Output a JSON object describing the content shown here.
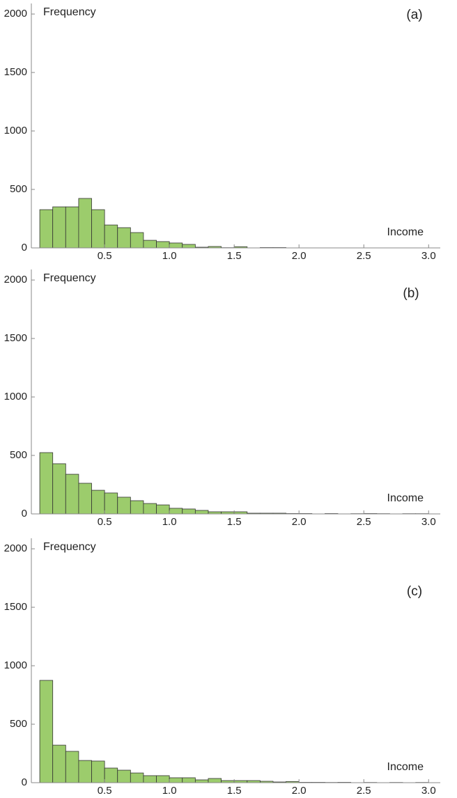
{
  "chart_data": [
    {
      "type": "histogram",
      "annotation": "(a)",
      "ylabel": "Frequency",
      "xlabel": "Income",
      "color": "#9ccc6c",
      "bins": [
        0,
        0.1,
        0.2,
        0.3,
        0.4,
        0.5,
        0.6,
        0.7,
        0.8,
        0.9,
        1.0,
        1.1,
        1.2,
        1.3,
        1.4,
        1.5,
        1.6,
        1.7,
        1.8,
        1.9
      ],
      "values": [
        327,
        351,
        351,
        423,
        327,
        196,
        173,
        131,
        65,
        54,
        42,
        30,
        6,
        12,
        2,
        10,
        0,
        3,
        3
      ],
      "xlim": [
        -0.065,
        3.09
      ],
      "ylim": [
        0,
        2090
      ],
      "xticks": [
        0.5,
        {
          "value": 1.0,
          "label": "1.0"
        },
        1.5,
        {
          "value": 2.0,
          "label": "2.0"
        },
        2.5,
        {
          "value": 3.0,
          "label": "3.0"
        }
      ],
      "yticks": [
        0,
        500,
        1000,
        1500,
        2000
      ]
    },
    {
      "type": "histogram",
      "annotation": "(b)",
      "ylabel": "Frequency",
      "xlabel": "Income",
      "color": "#9ccc6c",
      "bins": [
        0,
        0.1,
        0.2,
        0.3,
        0.4,
        0.5,
        0.6,
        0.7,
        0.8,
        0.9,
        1.0,
        1.1,
        1.2,
        1.3,
        1.4,
        1.5,
        1.6,
        1.7,
        1.8,
        1.9,
        2.0,
        2.1,
        2.2,
        2.3,
        2.4,
        2.5,
        2.6,
        2.7,
        2.8,
        2.9,
        3.0
      ],
      "values": [
        524,
        429,
        339,
        262,
        202,
        179,
        143,
        113,
        89,
        77,
        48,
        42,
        30,
        18,
        18,
        18,
        6,
        6,
        6,
        3,
        3,
        0,
        3,
        0,
        2,
        3,
        2,
        0,
        2,
        2
      ],
      "xlim": [
        -0.065,
        3.09
      ],
      "ylim": [
        0,
        2090
      ],
      "xticks": [
        0.5,
        {
          "value": 1.0,
          "label": "1.0"
        },
        1.5,
        {
          "value": 2.0,
          "label": "2.0"
        },
        2.5,
        {
          "value": 3.0,
          "label": "3.0"
        }
      ],
      "yticks": [
        0,
        500,
        1000,
        1500,
        2000
      ]
    },
    {
      "type": "histogram",
      "annotation": "(c)",
      "ylabel": "Frequency",
      "xlabel": "Income",
      "color": "#9ccc6c",
      "bins": [
        0,
        0.1,
        0.2,
        0.3,
        0.4,
        0.5,
        0.6,
        0.7,
        0.8,
        0.9,
        1.0,
        1.1,
        1.2,
        1.3,
        1.4,
        1.5,
        1.6,
        1.7,
        1.8,
        1.9,
        2.0,
        2.1,
        2.2,
        2.3,
        2.4,
        2.5,
        2.6,
        2.7,
        2.8,
        2.9,
        3.0
      ],
      "values": [
        875,
        321,
        268,
        190,
        185,
        125,
        107,
        83,
        60,
        60,
        42,
        42,
        24,
        36,
        18,
        18,
        18,
        12,
        6,
        10,
        3,
        3,
        2,
        3,
        0,
        2,
        0,
        2,
        0,
        2
      ],
      "xlim": [
        -0.065,
        3.09
      ],
      "ylim": [
        0,
        2090
      ],
      "xticks": [
        0.5,
        {
          "value": 1.0,
          "label": "1.0"
        },
        1.5,
        {
          "value": 2.0,
          "label": "2.0"
        },
        2.5,
        {
          "value": 3.0,
          "label": "3.0"
        }
      ],
      "yticks": [
        0,
        500,
        1000,
        1500,
        2000
      ]
    }
  ]
}
